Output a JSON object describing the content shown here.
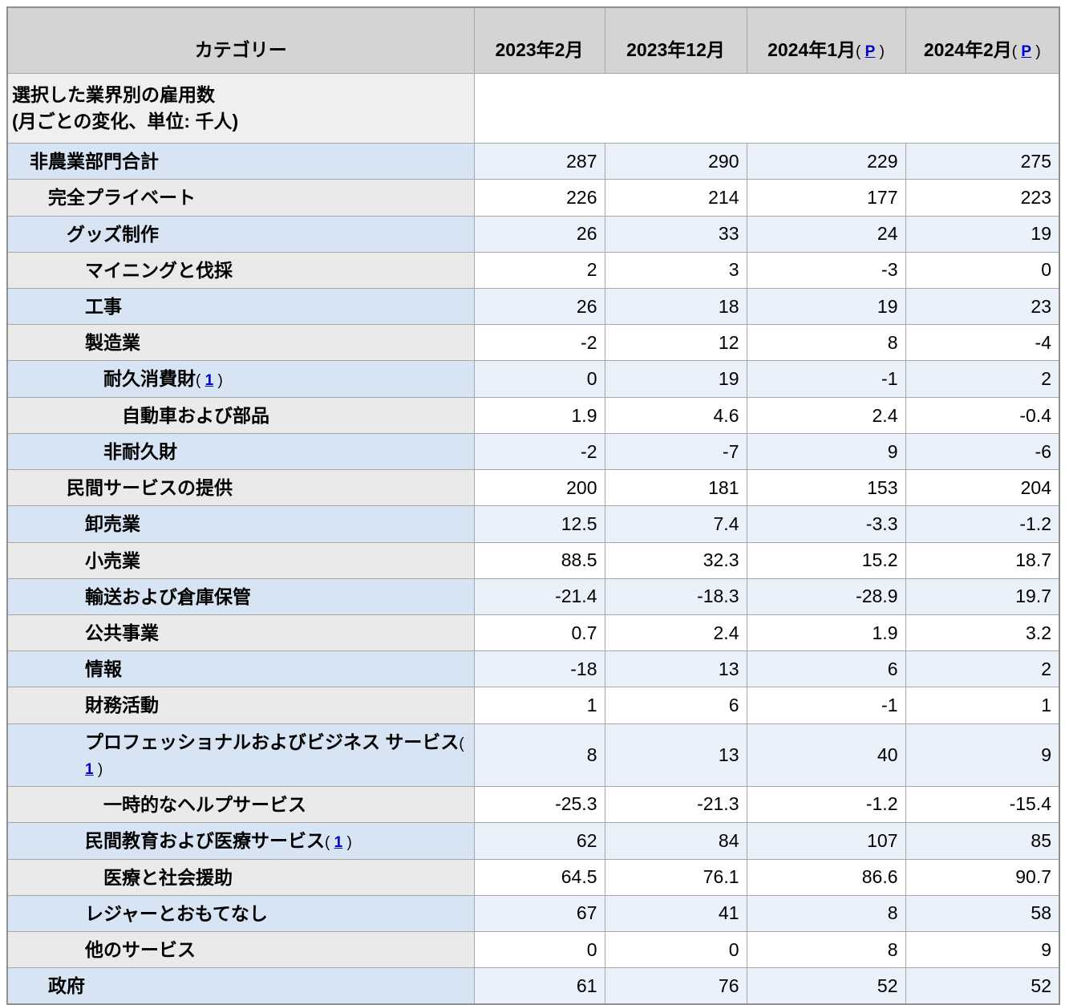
{
  "page": {
    "background": "#ffffff",
    "link_color": "#0000cc",
    "colors": {
      "header_bg": "#d4d4d4",
      "section_label_bg": "#efefef",
      "blue_row_label_bg": "#d7e4f3",
      "blue_row_value_bg": "#eaf1fa",
      "plain_row_label_bg": "#eaeaea",
      "plain_row_value_bg": "#ffffff",
      "border": "#a7a7a7",
      "text": "#000000"
    }
  },
  "chart_data": {
    "type": "table",
    "title": "選択した業界別の雇用数 (月ごとの変化、単位: 千人)",
    "columns": [
      {
        "label": "カテゴリー"
      },
      {
        "label": "2023年2月"
      },
      {
        "label": "2023年12月"
      },
      {
        "label": "2024年1月",
        "footnote": "P"
      },
      {
        "label": "2024年2月",
        "footnote": "P"
      }
    ],
    "section": {
      "line1": "選択した業界別の雇用数",
      "line2": "(月ごとの変化、単位: 千人)"
    },
    "rows": [
      {
        "label": "非農業部門合計",
        "level": 1,
        "shade": "blue",
        "values": [
          "287",
          "290",
          "229",
          "275"
        ]
      },
      {
        "label": "完全プライベート",
        "level": 2,
        "shade": "plain",
        "values": [
          "226",
          "214",
          "177",
          "223"
        ]
      },
      {
        "label": "グッズ制作",
        "level": 3,
        "shade": "blue",
        "values": [
          "26",
          "33",
          "24",
          "19"
        ]
      },
      {
        "label": "マイニングと伐採",
        "level": 4,
        "shade": "plain",
        "values": [
          "2",
          "3",
          "-3",
          "0"
        ]
      },
      {
        "label": "工事",
        "level": 4,
        "shade": "blue",
        "values": [
          "26",
          "18",
          "19",
          "23"
        ]
      },
      {
        "label": "製造業",
        "level": 4,
        "shade": "plain",
        "values": [
          "-2",
          "12",
          "8",
          "-4"
        ]
      },
      {
        "label": "耐久消費財",
        "footnote": "1",
        "level": 5,
        "shade": "blue",
        "values": [
          "0",
          "19",
          "-1",
          "2"
        ]
      },
      {
        "label": "自動車および部品",
        "level": 6,
        "shade": "plain",
        "values": [
          "1.9",
          "4.6",
          "2.4",
          "-0.4"
        ]
      },
      {
        "label": "非耐久財",
        "level": 5,
        "shade": "blue",
        "values": [
          "-2",
          "-7",
          "9",
          "-6"
        ]
      },
      {
        "label": "民間サービスの提供",
        "level": 3,
        "shade": "plain",
        "values": [
          "200",
          "181",
          "153",
          "204"
        ]
      },
      {
        "label": "卸売業",
        "level": 4,
        "shade": "blue",
        "values": [
          "12.5",
          "7.4",
          "-3.3",
          "-1.2"
        ]
      },
      {
        "label": "小売業",
        "level": 4,
        "shade": "plain",
        "values": [
          "88.5",
          "32.3",
          "15.2",
          "18.7"
        ]
      },
      {
        "label": "輸送および倉庫保管",
        "level": 4,
        "shade": "blue",
        "values": [
          "-21.4",
          "-18.3",
          "-28.9",
          "19.7"
        ]
      },
      {
        "label": "公共事業",
        "level": 4,
        "shade": "plain",
        "values": [
          "0.7",
          "2.4",
          "1.9",
          "3.2"
        ]
      },
      {
        "label": "情報",
        "level": 4,
        "shade": "blue",
        "values": [
          "-18",
          "13",
          "6",
          "2"
        ]
      },
      {
        "label": "財務活動",
        "level": 4,
        "shade": "plain",
        "values": [
          "1",
          "6",
          "-1",
          "1"
        ]
      },
      {
        "label": "プロフェッショナルおよびビジネス サービス",
        "footnote": "1",
        "level": 4,
        "shade": "blue",
        "values": [
          "8",
          "13",
          "40",
          "9"
        ]
      },
      {
        "label": "一時的なヘルプサービス",
        "level": 5,
        "shade": "plain",
        "values": [
          "-25.3",
          "-21.3",
          "-1.2",
          "-15.4"
        ]
      },
      {
        "label": "民間教育および医療サービス",
        "footnote": "1",
        "level": 4,
        "shade": "blue",
        "values": [
          "62",
          "84",
          "107",
          "85"
        ]
      },
      {
        "label": "医療と社会援助",
        "level": 5,
        "shade": "plain",
        "values": [
          "64.5",
          "76.1",
          "86.6",
          "90.7"
        ]
      },
      {
        "label": "レジャーとおもてなし",
        "level": 4,
        "shade": "blue",
        "values": [
          "67",
          "41",
          "8",
          "58"
        ]
      },
      {
        "label": "他のサービス",
        "level": 4,
        "shade": "plain",
        "values": [
          "0",
          "0",
          "8",
          "9"
        ]
      },
      {
        "label": "政府",
        "level": 2,
        "shade": "blue",
        "values": [
          "61",
          "76",
          "52",
          "52"
        ]
      }
    ]
  }
}
